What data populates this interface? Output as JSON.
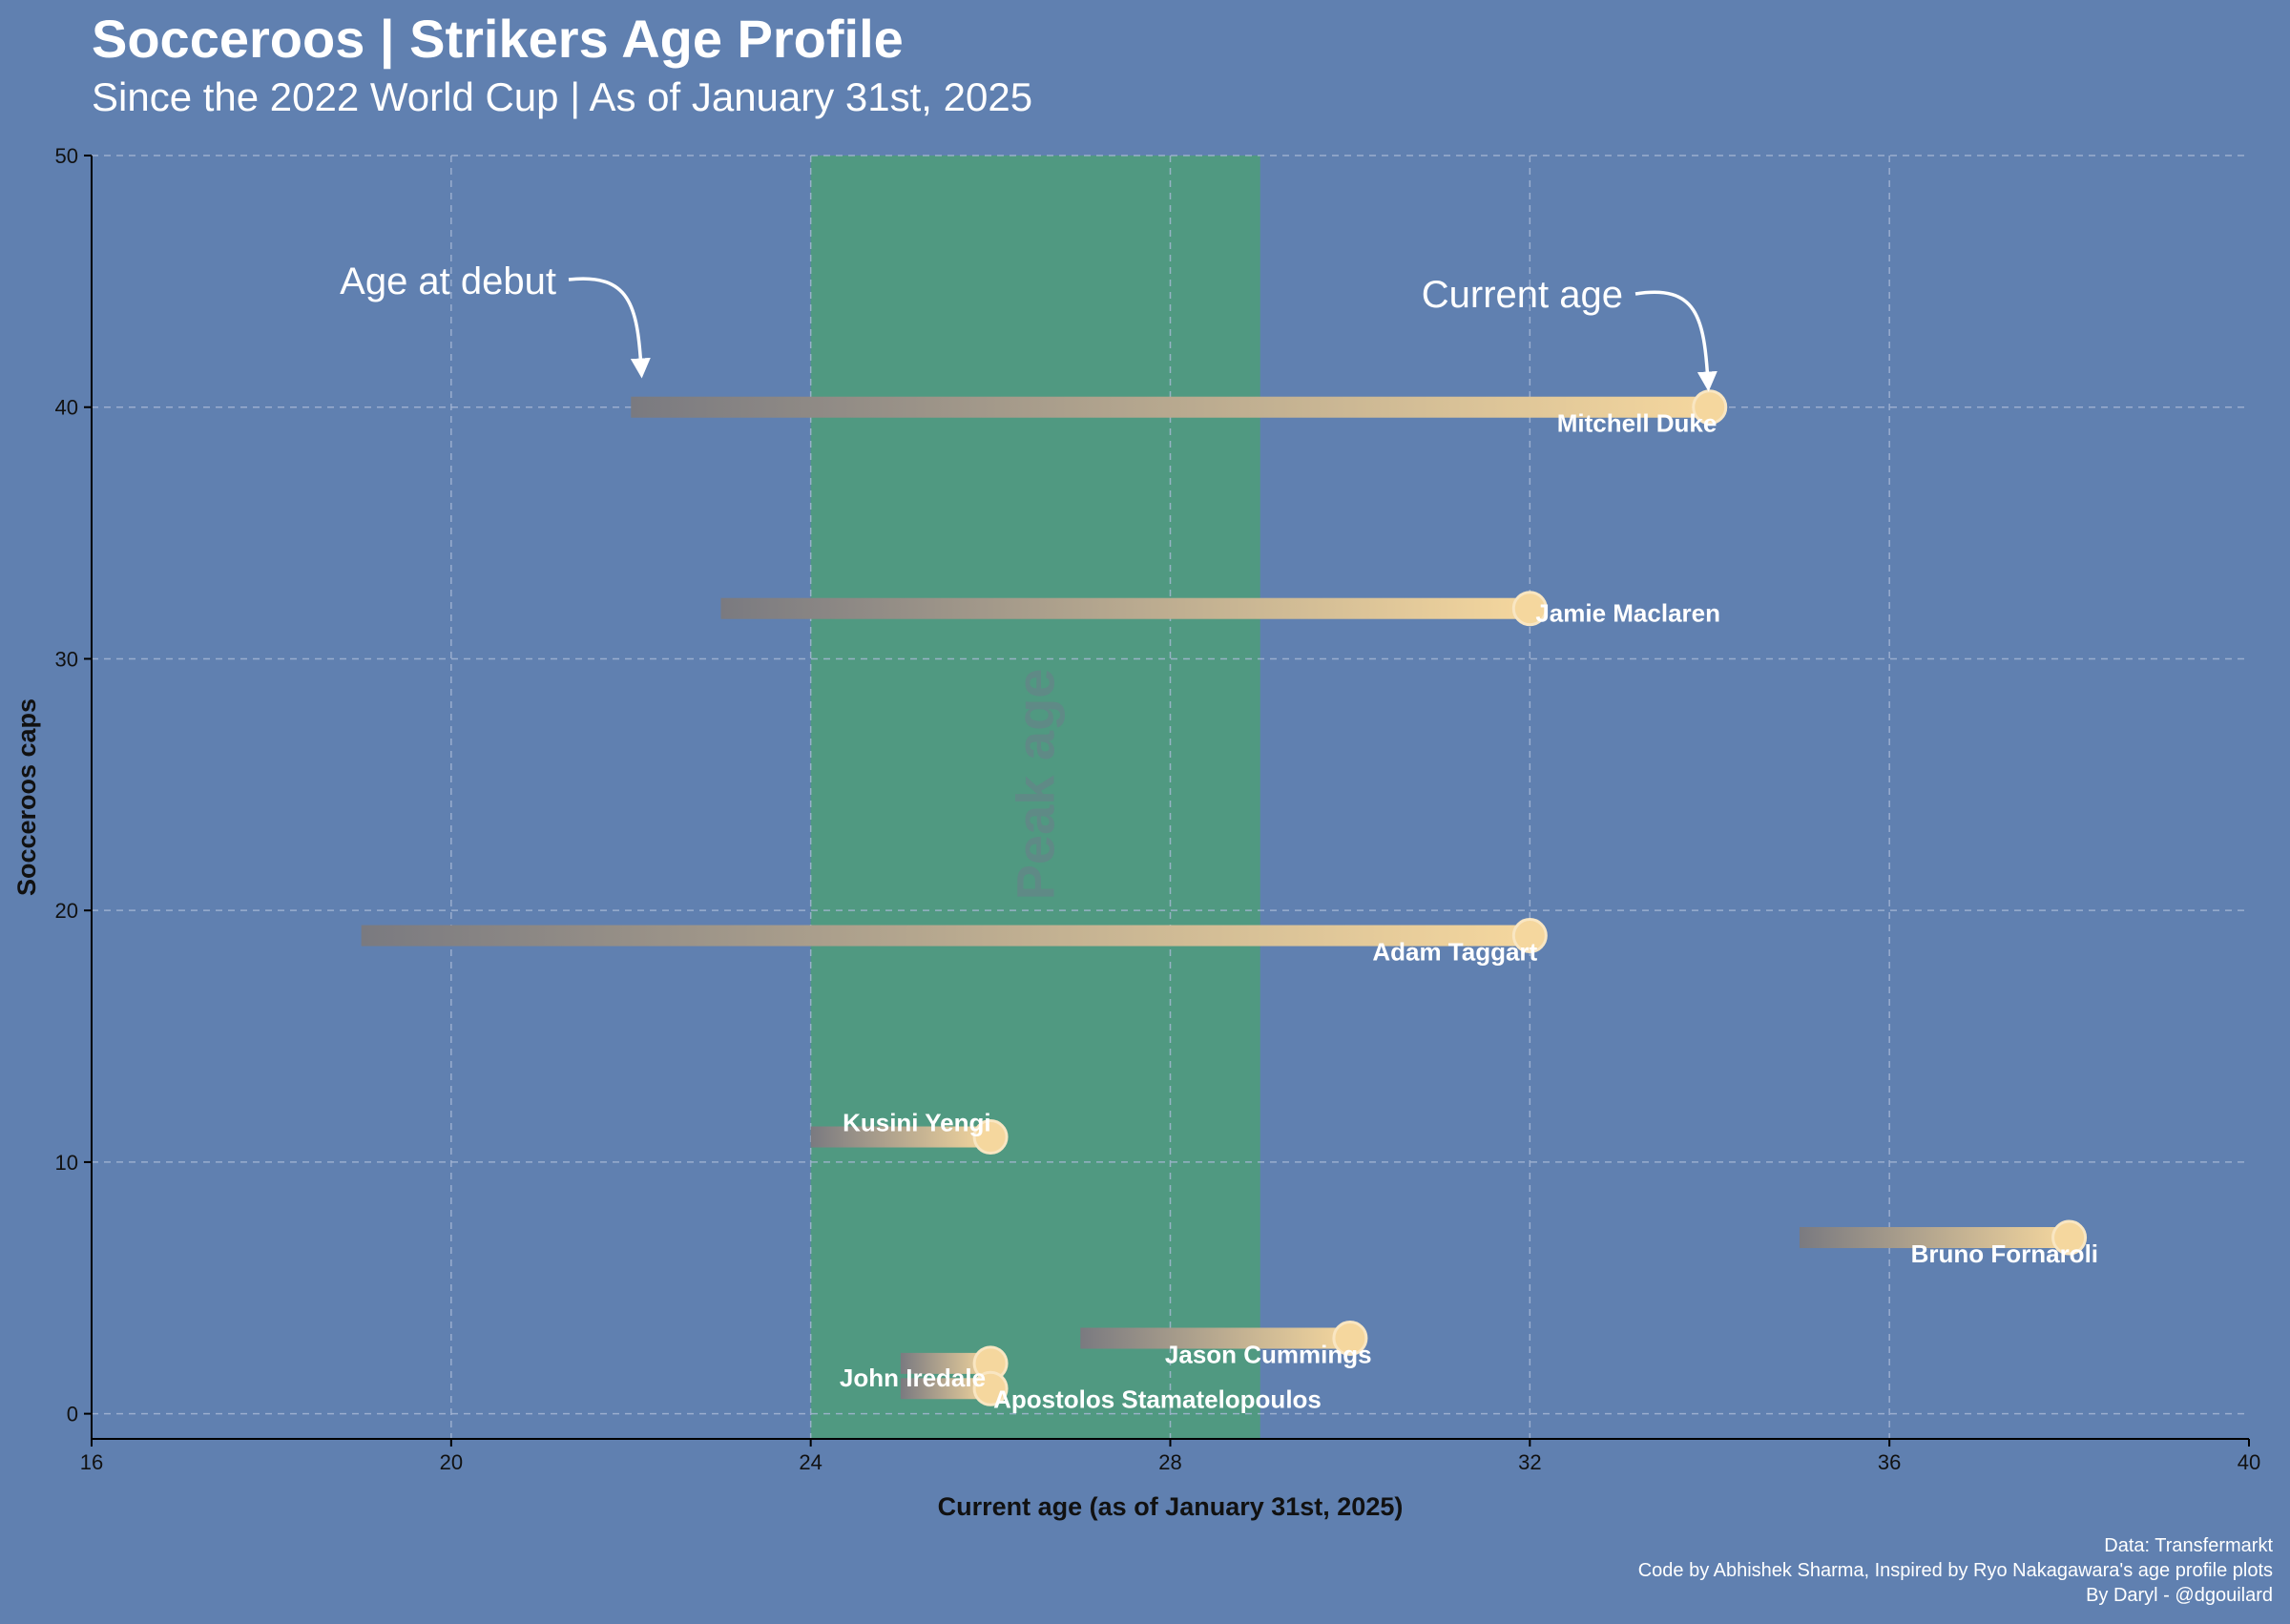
{
  "title": "Socceroos | Strikers Age Profile",
  "subtitle": "Since the 2022 World Cup | As of January 31st, 2025",
  "credits": {
    "data": "Data: Transfermarkt",
    "code": "Code by Abhishek Sharma, Inspired by Ryo Nakagawara's age profile plots",
    "author": "By Daryl - @dgouilard"
  },
  "annotations": {
    "debut": "Age at debut",
    "current": "Current age",
    "peak": "Peak age"
  },
  "colors": {
    "background": "#6080b0",
    "peak_band": "#4f9a7e",
    "bar_start": "#7a7a80",
    "bar_end": "#f5d79e",
    "grid": "#a9b9d6",
    "axis": "#000000",
    "text": "#ffffff"
  },
  "chart_data": {
    "type": "scatter",
    "xlabel": "Current age (as of January 31st, 2025)",
    "ylabel": "Socceroos caps",
    "xlim": [
      16,
      40
    ],
    "ylim": [
      -1,
      50
    ],
    "xticks": [
      16,
      20,
      24,
      28,
      32,
      36,
      40
    ],
    "yticks": [
      0,
      10,
      20,
      30,
      40,
      50
    ],
    "grid": true,
    "peak_age_range": [
      24,
      29
    ],
    "players": [
      {
        "name": "Mitchell Duke",
        "debut_age": 22,
        "current_age": 34,
        "caps": 40
      },
      {
        "name": "Jamie Maclaren",
        "debut_age": 23,
        "current_age": 32,
        "caps": 32
      },
      {
        "name": "Adam Taggart",
        "debut_age": 19,
        "current_age": 32,
        "caps": 19
      },
      {
        "name": "Kusini Yengi",
        "debut_age": 24,
        "current_age": 26,
        "caps": 11
      },
      {
        "name": "Bruno Fornaroli",
        "debut_age": 35,
        "current_age": 38,
        "caps": 7
      },
      {
        "name": "Jason Cummings",
        "debut_age": 27,
        "current_age": 30,
        "caps": 3
      },
      {
        "name": "John Iredale",
        "debut_age": 25,
        "current_age": 26,
        "caps": 2
      },
      {
        "name": "Apostolos Stamatelopoulos",
        "debut_age": 25,
        "current_age": 26,
        "caps": 1
      }
    ]
  }
}
